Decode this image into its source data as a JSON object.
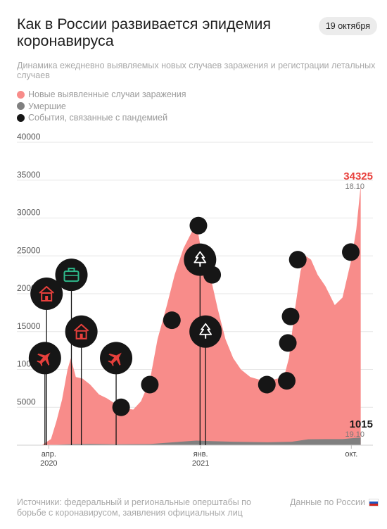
{
  "header": {
    "title": "Как в России развивается эпидемия коронавируса",
    "date_badge": "19 октября",
    "subtitle": "Динамика ежедневно выявляемых новых случаев заражения и регистрации летальных случаев"
  },
  "legend": [
    {
      "label": "Новые выявленные случаи заражения",
      "color": "#f88c8a"
    },
    {
      "label": "Умершие",
      "color": "#808080"
    },
    {
      "label": "События, связанные с пандемией",
      "color": "#161616"
    }
  ],
  "footer": {
    "sources": "Источники: федеральный и региональные оперштабы по борьбе с коронавирусом, заявления официальных лиц",
    "region": "Данные по России"
  },
  "chart_data": {
    "type": "area",
    "title": "Как в России развивается эпидемия коронавируса",
    "ylim": [
      0,
      40000
    ],
    "yticks": [
      5000,
      10000,
      15000,
      20000,
      25000,
      30000,
      35000,
      40000
    ],
    "xtick_labels": [
      {
        "date": "2020-04-01",
        "line1": "апр.",
        "line2": "2020"
      },
      {
        "date": "2021-01-01",
        "line1": "янв.",
        "line2": "2021"
      },
      {
        "date": "2021-10-01",
        "line1": "окт.",
        "line2": ""
      }
    ],
    "series": [
      {
        "name": "Новые выявленные случаи заражения",
        "color": "#f88c8a",
        "points": [
          [
            "2020-03-01",
            0
          ],
          [
            "2020-03-20",
            50
          ],
          [
            "2020-04-05",
            800
          ],
          [
            "2020-04-15",
            3200
          ],
          [
            "2020-04-25",
            6000
          ],
          [
            "2020-05-05",
            10000
          ],
          [
            "2020-05-11",
            11500
          ],
          [
            "2020-05-20",
            9000
          ],
          [
            "2020-06-01",
            8800
          ],
          [
            "2020-06-15",
            8000
          ],
          [
            "2020-07-01",
            6700
          ],
          [
            "2020-07-15",
            6200
          ],
          [
            "2020-08-01",
            5400
          ],
          [
            "2020-08-15",
            4900
          ],
          [
            "2020-09-01",
            4700
          ],
          [
            "2020-09-15",
            5800
          ],
          [
            "2020-10-01",
            8500
          ],
          [
            "2020-10-15",
            14000
          ],
          [
            "2020-11-01",
            18500
          ],
          [
            "2020-11-15",
            22500
          ],
          [
            "2020-12-01",
            26000
          ],
          [
            "2020-12-15",
            28000
          ],
          [
            "2020-12-24",
            29500
          ],
          [
            "2021-01-05",
            24500
          ],
          [
            "2021-01-15",
            23500
          ],
          [
            "2021-02-01",
            18000
          ],
          [
            "2021-02-15",
            14000
          ],
          [
            "2021-03-01",
            11500
          ],
          [
            "2021-03-15",
            10000
          ],
          [
            "2021-04-01",
            9000
          ],
          [
            "2021-04-15",
            8700
          ],
          [
            "2021-05-01",
            8500
          ],
          [
            "2021-05-15",
            8700
          ],
          [
            "2021-06-01",
            9000
          ],
          [
            "2021-06-10",
            11500
          ],
          [
            "2021-06-20",
            17500
          ],
          [
            "2021-07-01",
            23000
          ],
          [
            "2021-07-10",
            25000
          ],
          [
            "2021-07-20",
            24500
          ],
          [
            "2021-08-01",
            22500
          ],
          [
            "2021-08-15",
            21000
          ],
          [
            "2021-09-01",
            18500
          ],
          [
            "2021-09-15",
            19500
          ],
          [
            "2021-10-01",
            24500
          ],
          [
            "2021-10-10",
            28500
          ],
          [
            "2021-10-18",
            34325
          ]
        ]
      },
      {
        "name": "Умершие",
        "color": "#808080",
        "points": [
          [
            "2020-03-01",
            0
          ],
          [
            "2020-04-15",
            50
          ],
          [
            "2020-05-15",
            150
          ],
          [
            "2020-06-15",
            180
          ],
          [
            "2020-08-01",
            120
          ],
          [
            "2020-10-01",
            150
          ],
          [
            "2020-11-15",
            400
          ],
          [
            "2020-12-24",
            600
          ],
          [
            "2021-01-15",
            550
          ],
          [
            "2021-03-01",
            450
          ],
          [
            "2021-05-01",
            380
          ],
          [
            "2021-06-15",
            450
          ],
          [
            "2021-07-15",
            780
          ],
          [
            "2021-08-15",
            800
          ],
          [
            "2021-09-15",
            800
          ],
          [
            "2021-10-18",
            1015
          ]
        ]
      }
    ],
    "annotations": [
      {
        "text": "34325",
        "sub": "18.10",
        "date": "2021-10-18",
        "value": 34325,
        "color": "#e8403c"
      },
      {
        "text": "1015",
        "sub": "19.10",
        "date": "2021-10-18",
        "value": 1015,
        "color": "#1a1a1a"
      }
    ],
    "events": [
      {
        "icon": "plane-icon",
        "date": "2020-03-25",
        "value": 11500,
        "stem": true
      },
      {
        "icon": "house-icon",
        "date": "2020-03-28",
        "value": 20000,
        "stem": true
      },
      {
        "icon": "briefcase-icon",
        "date": "2020-05-12",
        "value": 22500,
        "stem": true
      },
      {
        "icon": "house-icon",
        "date": "2020-05-30",
        "value": 15000,
        "stem": true
      },
      {
        "icon": "plane-icon",
        "date": "2020-08-01",
        "value": 11500,
        "stem": true
      },
      {
        "icon": "",
        "date": "2020-08-10",
        "value": 5000,
        "stem": false
      },
      {
        "icon": "",
        "date": "2020-10-01",
        "value": 8000,
        "stem": false
      },
      {
        "icon": "",
        "date": "2020-11-10",
        "value": 16500,
        "stem": false
      },
      {
        "icon": "",
        "date": "2020-12-28",
        "value": 29000,
        "stem": false
      },
      {
        "icon": "tree-icon",
        "date": "2020-12-31",
        "value": 24500,
        "stem": true
      },
      {
        "icon": "tree-icon",
        "date": "2021-01-10",
        "value": 15000,
        "stem": true
      },
      {
        "icon": "",
        "date": "2021-01-22",
        "value": 22500,
        "stem": false
      },
      {
        "icon": "",
        "date": "2021-05-01",
        "value": 8000,
        "stem": false
      },
      {
        "icon": "",
        "date": "2021-06-06",
        "value": 8500,
        "stem": false
      },
      {
        "icon": "",
        "date": "2021-06-08",
        "value": 13500,
        "stem": false
      },
      {
        "icon": "",
        "date": "2021-06-13",
        "value": 17000,
        "stem": false
      },
      {
        "icon": "",
        "date": "2021-06-26",
        "value": 24500,
        "stem": false
      },
      {
        "icon": "",
        "date": "2021-09-30",
        "value": 25500,
        "stem": false
      }
    ]
  }
}
